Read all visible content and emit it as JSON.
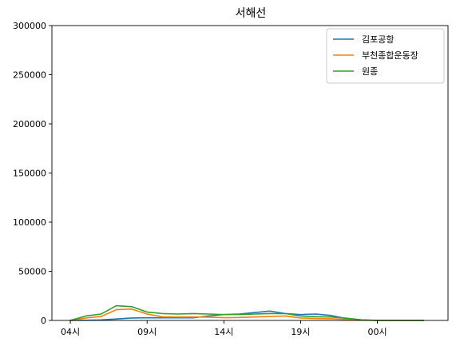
{
  "chart_data": {
    "type": "line",
    "title": "서해선",
    "xlabel": "",
    "ylabel": "",
    "x_tick_labels": [
      "04시",
      "09시",
      "14시",
      "19시",
      "00시"
    ],
    "x_tick_positions": [
      0,
      5,
      10,
      15,
      20
    ],
    "xlim": [
      -1.2,
      24.6
    ],
    "ylim": [
      0,
      300000
    ],
    "y_ticks": [
      0,
      50000,
      100000,
      150000,
      200000,
      250000,
      300000
    ],
    "legend_position": "top-right",
    "grid": false,
    "x": [
      0,
      1,
      2,
      3,
      4,
      5,
      6,
      7,
      8,
      9,
      10,
      11,
      12,
      13,
      14,
      15,
      16,
      17,
      18,
      19,
      20,
      21,
      22,
      23
    ],
    "series": [
      {
        "name": "김포공항",
        "color": "#1f77b4",
        "values": [
          0,
          200,
          500,
          1500,
          2500,
          2700,
          2700,
          2700,
          2700,
          4500,
          6000,
          6500,
          8000,
          9500,
          7000,
          6000,
          6500,
          5000,
          1800,
          500,
          100,
          0,
          0,
          0
        ]
      },
      {
        "name": "부천종합운동장",
        "color": "#ff7f0e",
        "values": [
          0,
          2500,
          4000,
          11000,
          11500,
          6500,
          3700,
          3500,
          3500,
          3300,
          2800,
          3000,
          3500,
          4000,
          4500,
          2500,
          2000,
          1700,
          1000,
          300,
          0,
          0,
          0,
          0
        ]
      },
      {
        "name": "원종",
        "color": "#2ca02c",
        "values": [
          0,
          4500,
          6500,
          15000,
          14000,
          8500,
          7000,
          6500,
          7000,
          6500,
          6000,
          6000,
          6500,
          7000,
          7000,
          4500,
          3800,
          3500,
          2300,
          500,
          0,
          0,
          0,
          0
        ]
      }
    ]
  }
}
